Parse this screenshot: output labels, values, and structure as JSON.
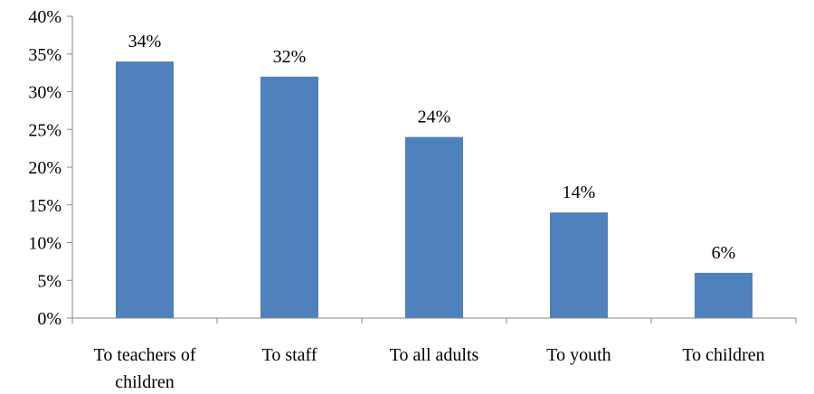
{
  "chart_data": {
    "type": "bar",
    "title": "",
    "xlabel": "",
    "ylabel": "",
    "categories": [
      [
        "To teachers of",
        "children"
      ],
      [
        "To staff"
      ],
      [
        "To all adults"
      ],
      [
        "To youth"
      ],
      [
        "To children"
      ]
    ],
    "values": [
      34,
      32,
      24,
      14,
      6
    ],
    "value_labels": [
      "34%",
      "32%",
      "24%",
      "14%",
      "6%"
    ],
    "ylim": [
      0,
      40
    ],
    "yticks": [
      0,
      5,
      10,
      15,
      20,
      25,
      30,
      35,
      40
    ],
    "ytick_labels": [
      "0%",
      "5%",
      "10%",
      "15%",
      "20%",
      "25%",
      "30%",
      "35%",
      "40%"
    ],
    "grid": false,
    "legend": "none",
    "colors": {
      "bar": "#4f81bd",
      "axis": "#868686",
      "text": "#000000"
    }
  }
}
